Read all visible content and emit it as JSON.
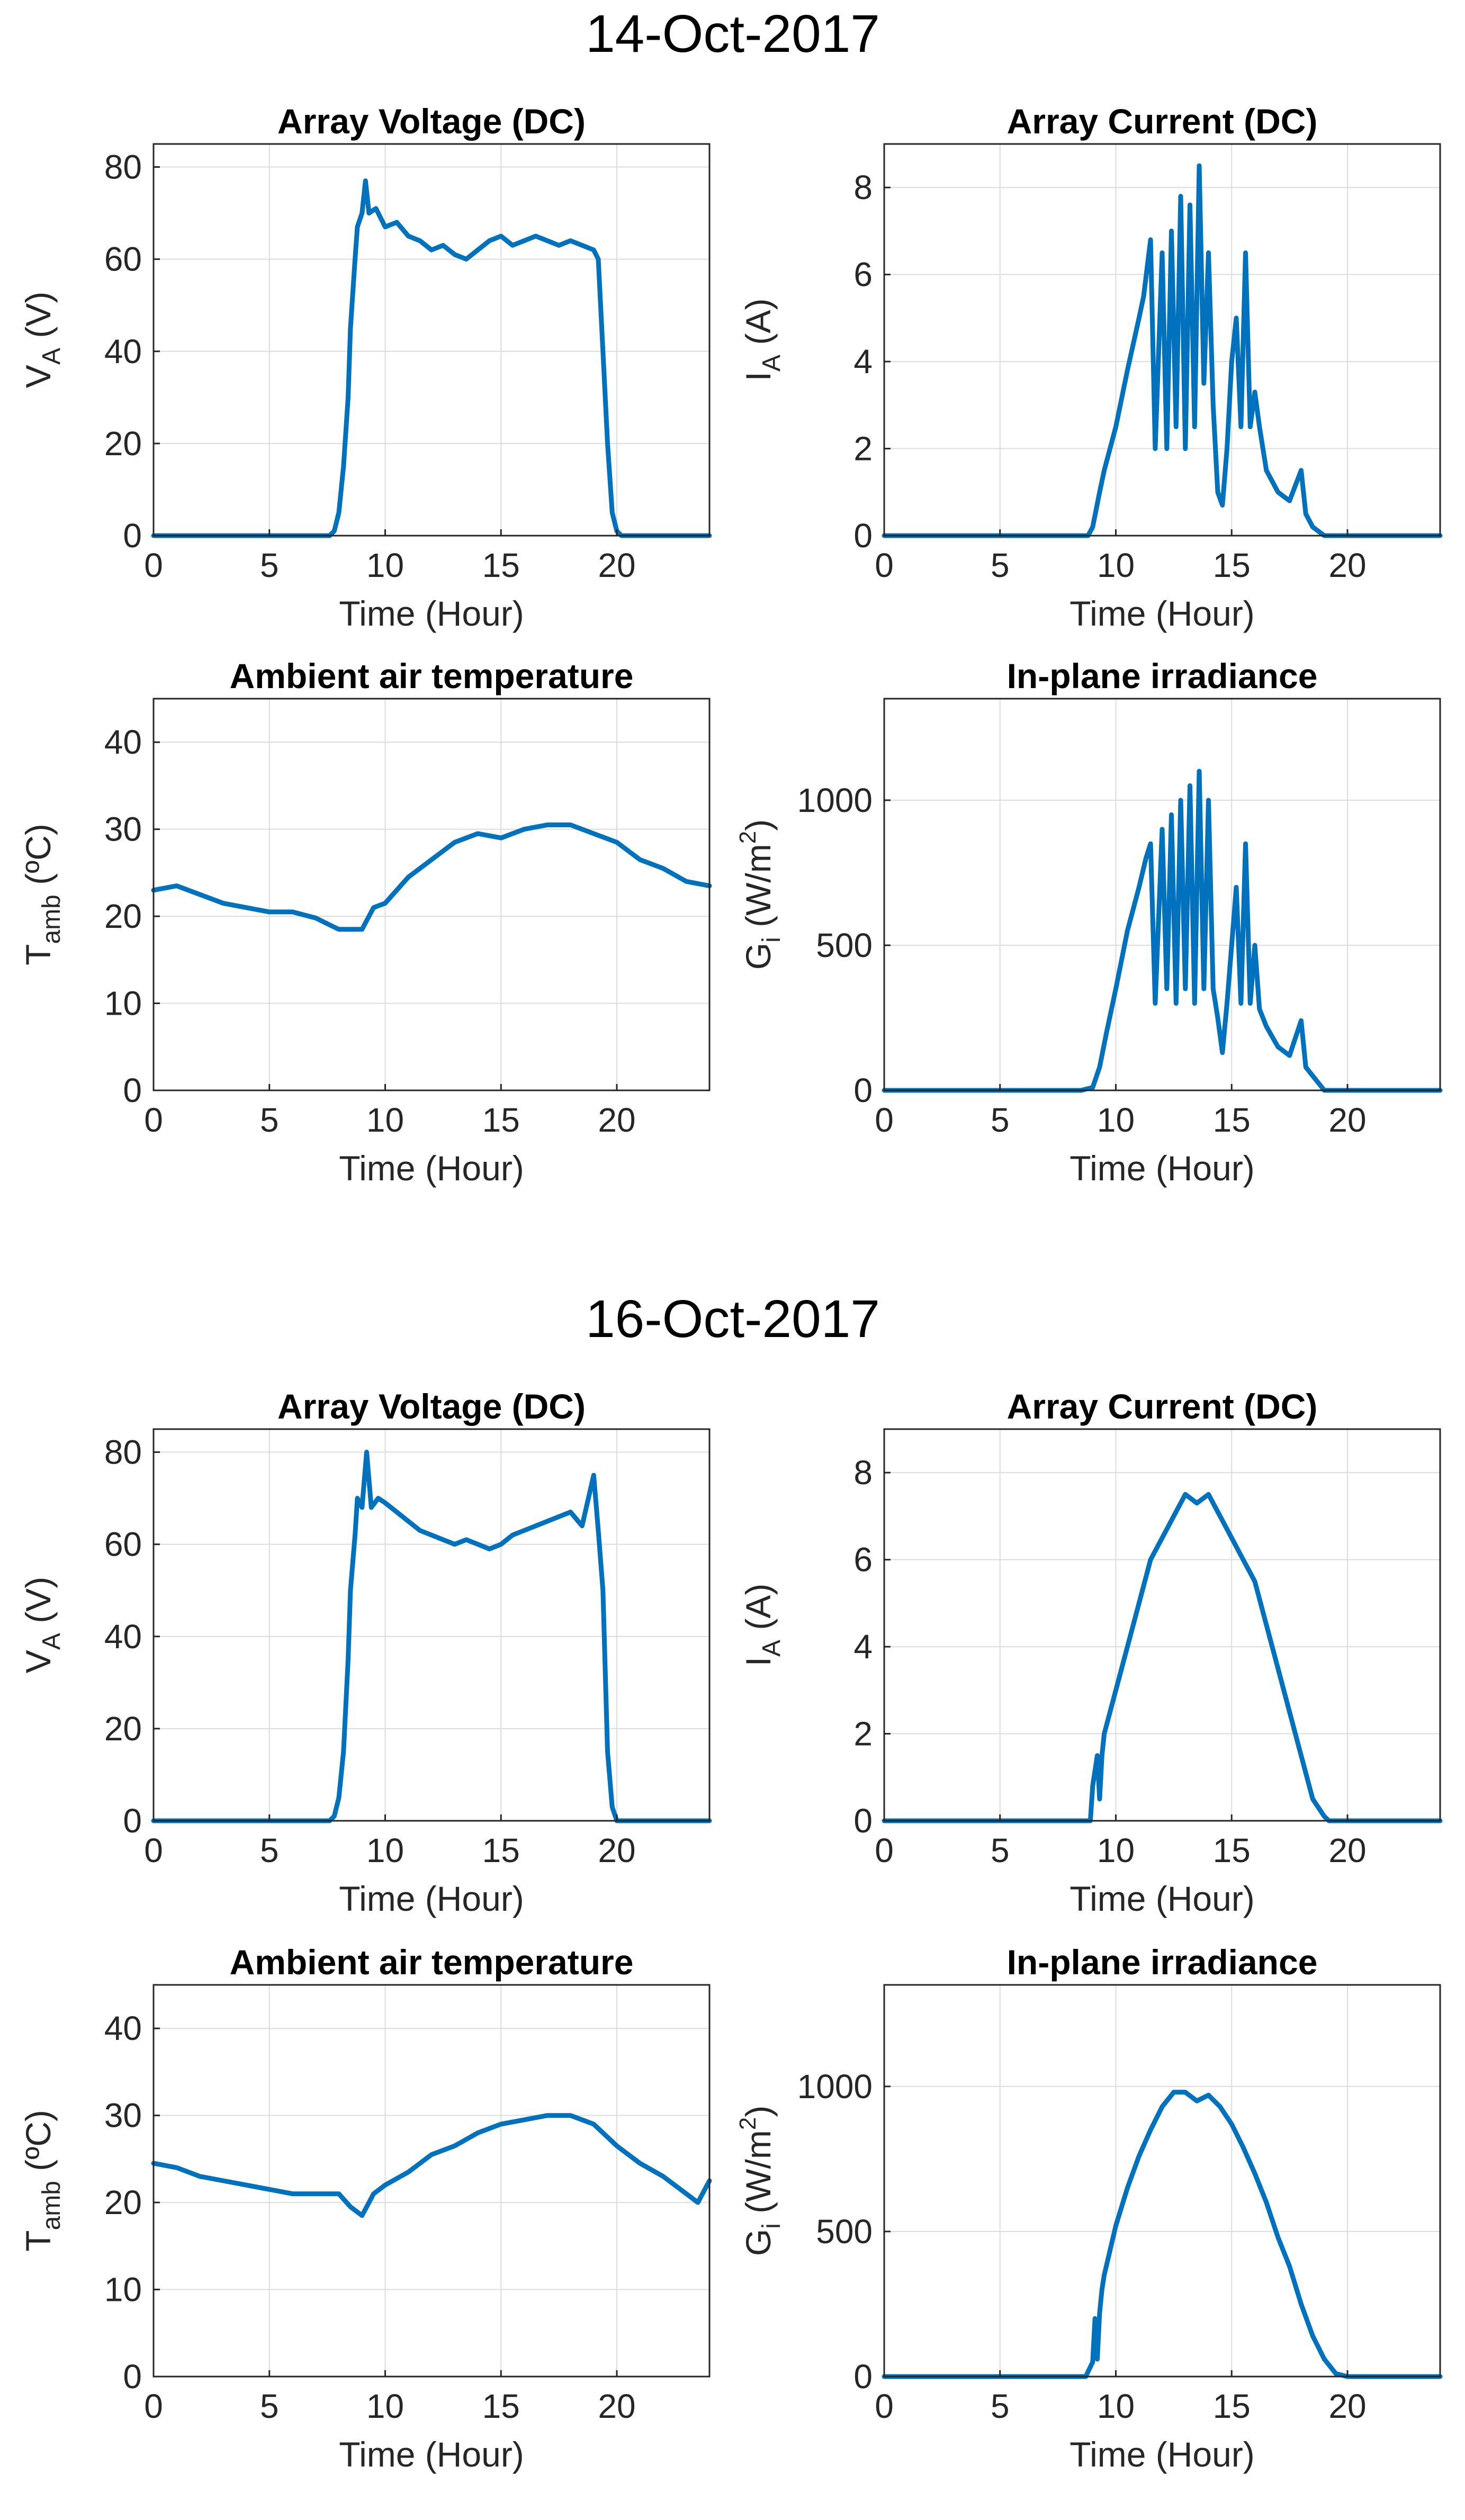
{
  "figure": {
    "line_color": "#0072BD",
    "grid_color": "#DCDCDC",
    "axis_color": "#262626"
  },
  "days": [
    {
      "title": "14-Oct-2017"
    },
    {
      "title": "16-Oct-2017"
    }
  ],
  "chart_data": [
    {
      "type": "line",
      "title": "Array Voltage (DC)",
      "xlabel": "Time (Hour)",
      "ylabel": {
        "main": "V",
        "sub": "A",
        "sup": "",
        "tail": " (V)"
      },
      "xlim": [
        0,
        24
      ],
      "ylim": [
        0,
        85
      ],
      "xticks": [
        0,
        5,
        10,
        15,
        20
      ],
      "yticks": [
        0,
        20,
        40,
        60,
        80
      ],
      "series": [
        {
          "name": "14-Oct-2017 V_A",
          "x": [
            0,
            7.6,
            7.8,
            8,
            8.2,
            8.4,
            8.5,
            8.7,
            8.8,
            9,
            9.15,
            9.3,
            9.6,
            10,
            10.5,
            11,
            11.5,
            12,
            12.5,
            13,
            13.5,
            14,
            14.5,
            15,
            15.5,
            16,
            16.5,
            17,
            17.5,
            18,
            18.5,
            19,
            19.2,
            19.4,
            19.6,
            19.8,
            20,
            20.2,
            24
          ],
          "y": [
            0,
            0,
            1,
            5,
            15,
            30,
            45,
            60,
            67,
            70,
            77,
            70,
            71,
            67,
            68,
            65,
            64,
            62,
            63,
            61,
            60,
            62,
            64,
            65,
            63,
            64,
            65,
            64,
            63,
            64,
            63,
            62,
            60,
            40,
            20,
            5,
            1,
            0,
            0
          ]
        }
      ]
    },
    {
      "type": "line",
      "title": "Array Current (DC)",
      "xlabel": "Time (Hour)",
      "ylabel": {
        "main": "I",
        "sub": "A",
        "sup": "",
        "tail": " (A)"
      },
      "xlim": [
        0,
        24
      ],
      "ylim": [
        0,
        9
      ],
      "xticks": [
        0,
        5,
        10,
        15,
        20
      ],
      "yticks": [
        0,
        2,
        4,
        6,
        8
      ],
      "series": [
        {
          "name": "14-Oct-2017 I_A",
          "x": [
            0,
            8.8,
            9,
            9.3,
            9.5,
            10,
            10.5,
            11,
            11.2,
            11.5,
            11.7,
            12,
            12.2,
            12.4,
            12.6,
            12.8,
            13,
            13.2,
            13.4,
            13.6,
            13.8,
            14,
            14.2,
            14.4,
            14.6,
            14.8,
            15,
            15.2,
            15.4,
            15.6,
            15.8,
            16,
            16.2,
            16.5,
            17,
            17.5,
            18,
            18.2,
            18.5,
            19,
            19.5,
            24
          ],
          "y": [
            0,
            0,
            0.2,
            1,
            1.5,
            2.5,
            3.8,
            5,
            5.5,
            6.8,
            2,
            6.5,
            2,
            7,
            2.5,
            7.8,
            2,
            7.6,
            2.5,
            8.5,
            3.5,
            6.5,
            3,
            1,
            0.7,
            2,
            4,
            5,
            2.5,
            6.5,
            2.5,
            3.3,
            2.5,
            1.5,
            1,
            0.8,
            1.5,
            0.5,
            0.2,
            0,
            0,
            0
          ]
        }
      ]
    },
    {
      "type": "line",
      "title": "Ambient air temperature",
      "xlabel": "Time (Hour)",
      "ylabel": {
        "main": "T",
        "sub": "amb",
        "sup": "",
        "tail": " (ºC)"
      },
      "xlim": [
        0,
        24
      ],
      "ylim": [
        0,
        45
      ],
      "xticks": [
        0,
        5,
        10,
        15,
        20
      ],
      "yticks": [
        0,
        10,
        20,
        30,
        40
      ],
      "series": [
        {
          "name": "14-Oct-2017 T_amb",
          "x": [
            0,
            1,
            2,
            3,
            4,
            5,
            6,
            7,
            8,
            9,
            9.5,
            10,
            11,
            12,
            13,
            14,
            15,
            16,
            17,
            18,
            19,
            20,
            21,
            22,
            23,
            24
          ],
          "y": [
            23,
            23.5,
            22.5,
            21.5,
            21,
            20.5,
            20.5,
            19.8,
            18.5,
            18.5,
            21,
            21.5,
            24.5,
            26.5,
            28.5,
            29.5,
            29,
            30,
            30.5,
            30.5,
            29.5,
            28.5,
            26.5,
            25.5,
            24,
            23.5
          ]
        }
      ]
    },
    {
      "type": "line",
      "title": "In-plane irradiance",
      "xlabel": "Time (Hour)",
      "ylabel": {
        "main": "G",
        "sub": "i",
        "sup": "2",
        "tail": " (W/m"
      },
      "xlim": [
        0,
        24
      ],
      "ylim": [
        0,
        1350
      ],
      "xticks": [
        0,
        5,
        10,
        15,
        20
      ],
      "yticks": [
        0,
        500,
        1000
      ],
      "series": [
        {
          "name": "14-Oct-2017 G_i",
          "x": [
            0,
            8.5,
            9,
            9.3,
            9.6,
            10,
            10.5,
            11,
            11.3,
            11.5,
            11.7,
            12,
            12.2,
            12.4,
            12.6,
            12.8,
            13,
            13.2,
            13.4,
            13.6,
            13.8,
            14,
            14.2,
            14.4,
            14.6,
            14.8,
            15,
            15.2,
            15.4,
            15.6,
            15.8,
            16,
            16.2,
            16.5,
            17,
            17.5,
            18,
            18.2,
            18.5,
            19,
            19.5,
            24
          ],
          "y": [
            0,
            0,
            10,
            80,
            200,
            350,
            550,
            700,
            800,
            850,
            300,
            900,
            350,
            950,
            300,
            1000,
            350,
            1050,
            300,
            1100,
            350,
            1000,
            350,
            250,
            130,
            300,
            500,
            700,
            300,
            850,
            300,
            500,
            280,
            220,
            150,
            120,
            240,
            80,
            50,
            0,
            0,
            0
          ]
        }
      ]
    },
    {
      "type": "line",
      "title": "Array Voltage (DC)",
      "xlabel": "Time (Hour)",
      "ylabel": {
        "main": "V",
        "sub": "A",
        "sup": "",
        "tail": " (V)"
      },
      "xlim": [
        0,
        24
      ],
      "ylim": [
        0,
        85
      ],
      "xticks": [
        0,
        5,
        10,
        15,
        20
      ],
      "yticks": [
        0,
        20,
        40,
        60,
        80
      ],
      "series": [
        {
          "name": "16-Oct-2017 V_A",
          "x": [
            0,
            7.6,
            7.8,
            8,
            8.2,
            8.4,
            8.5,
            8.7,
            8.8,
            9,
            9.2,
            9.4,
            9.7,
            10,
            10.5,
            11,
            11.5,
            12,
            12.5,
            13,
            13.5,
            14,
            14.5,
            15,
            15.5,
            16,
            16.5,
            17,
            17.5,
            18,
            18.5,
            19,
            19.2,
            19.4,
            19.6,
            19.8,
            20,
            24
          ],
          "y": [
            0,
            0,
            1,
            5,
            15,
            35,
            50,
            62,
            70,
            68,
            80,
            68,
            70,
            69,
            67,
            65,
            63,
            62,
            61,
            60,
            61,
            60,
            59,
            60,
            62,
            63,
            64,
            65,
            66,
            67,
            64,
            75,
            63,
            50,
            15,
            3,
            0,
            0
          ]
        }
      ]
    },
    {
      "type": "line",
      "title": "Array Current (DC)",
      "xlabel": "Time (Hour)",
      "ylabel": {
        "main": "I",
        "sub": "A",
        "sup": "",
        "tail": " (A)"
      },
      "xlim": [
        0,
        24
      ],
      "ylim": [
        0,
        9
      ],
      "xticks": [
        0,
        5,
        10,
        15,
        20
      ],
      "yticks": [
        0,
        2,
        4,
        6,
        8
      ],
      "series": [
        {
          "name": "16-Oct-2017 I_A",
          "x": [
            0,
            8.9,
            9,
            9.2,
            9.3,
            9.4,
            9.5,
            10,
            10.5,
            11,
            11.5,
            12,
            12.5,
            13,
            13.5,
            14,
            14.5,
            15,
            15.5,
            16,
            16.5,
            17,
            17.5,
            18,
            18.5,
            19,
            19.2,
            24
          ],
          "y": [
            0,
            0,
            0.8,
            1.5,
            0.5,
            1.5,
            2,
            3,
            4,
            5,
            6,
            6.5,
            7,
            7.5,
            7.3,
            7.5,
            7,
            6.5,
            6,
            5.5,
            4.5,
            3.5,
            2.5,
            1.5,
            0.5,
            0.1,
            0,
            0
          ]
        }
      ]
    },
    {
      "type": "line",
      "title": "Ambient air temperature",
      "xlabel": "Time (Hour)",
      "ylabel": {
        "main": "T",
        "sub": "amb",
        "sup": "",
        "tail": " (ºC)"
      },
      "xlim": [
        0,
        24
      ],
      "ylim": [
        0,
        45
      ],
      "xticks": [
        0,
        5,
        10,
        15,
        20
      ],
      "yticks": [
        0,
        10,
        20,
        30,
        40
      ],
      "series": [
        {
          "name": "16-Oct-2017 T_amb",
          "x": [
            0,
            1,
            2,
            3,
            4,
            5,
            6,
            7,
            8,
            8.5,
            9,
            9.5,
            10,
            11,
            12,
            13,
            14,
            15,
            16,
            17,
            18,
            19,
            20,
            21,
            22,
            23,
            23.5,
            24
          ],
          "y": [
            24.5,
            24,
            23,
            22.5,
            22,
            21.5,
            21,
            21,
            21,
            19.5,
            18.5,
            21,
            22,
            23.5,
            25.5,
            26.5,
            28,
            29,
            29.5,
            30,
            30,
            29,
            26.5,
            24.5,
            23,
            21,
            20,
            22.5
          ]
        }
      ]
    },
    {
      "type": "line",
      "title": "In-plane irradiance",
      "xlabel": "Time (Hour)",
      "ylabel": {
        "main": "G",
        "sub": "i",
        "sup": "2",
        "tail": " (W/m"
      },
      "xlim": [
        0,
        24
      ],
      "ylim": [
        0,
        1350
      ],
      "xticks": [
        0,
        5,
        10,
        15,
        20
      ],
      "yticks": [
        0,
        500,
        1000
      ],
      "series": [
        {
          "name": "16-Oct-2017 G_i",
          "x": [
            0,
            8.7,
            9,
            9.1,
            9.2,
            9.3,
            9.4,
            9.5,
            10,
            10.5,
            11,
            11.5,
            12,
            12.5,
            13,
            13.5,
            14,
            14.5,
            15,
            15.5,
            16,
            16.5,
            17,
            17.5,
            18,
            18.5,
            19,
            19.5,
            20,
            24
          ],
          "y": [
            0,
            0,
            50,
            200,
            60,
            220,
            300,
            350,
            520,
            650,
            760,
            850,
            930,
            980,
            980,
            950,
            970,
            930,
            870,
            790,
            700,
            600,
            480,
            380,
            250,
            140,
            60,
            10,
            0,
            0
          ]
        }
      ]
    }
  ]
}
